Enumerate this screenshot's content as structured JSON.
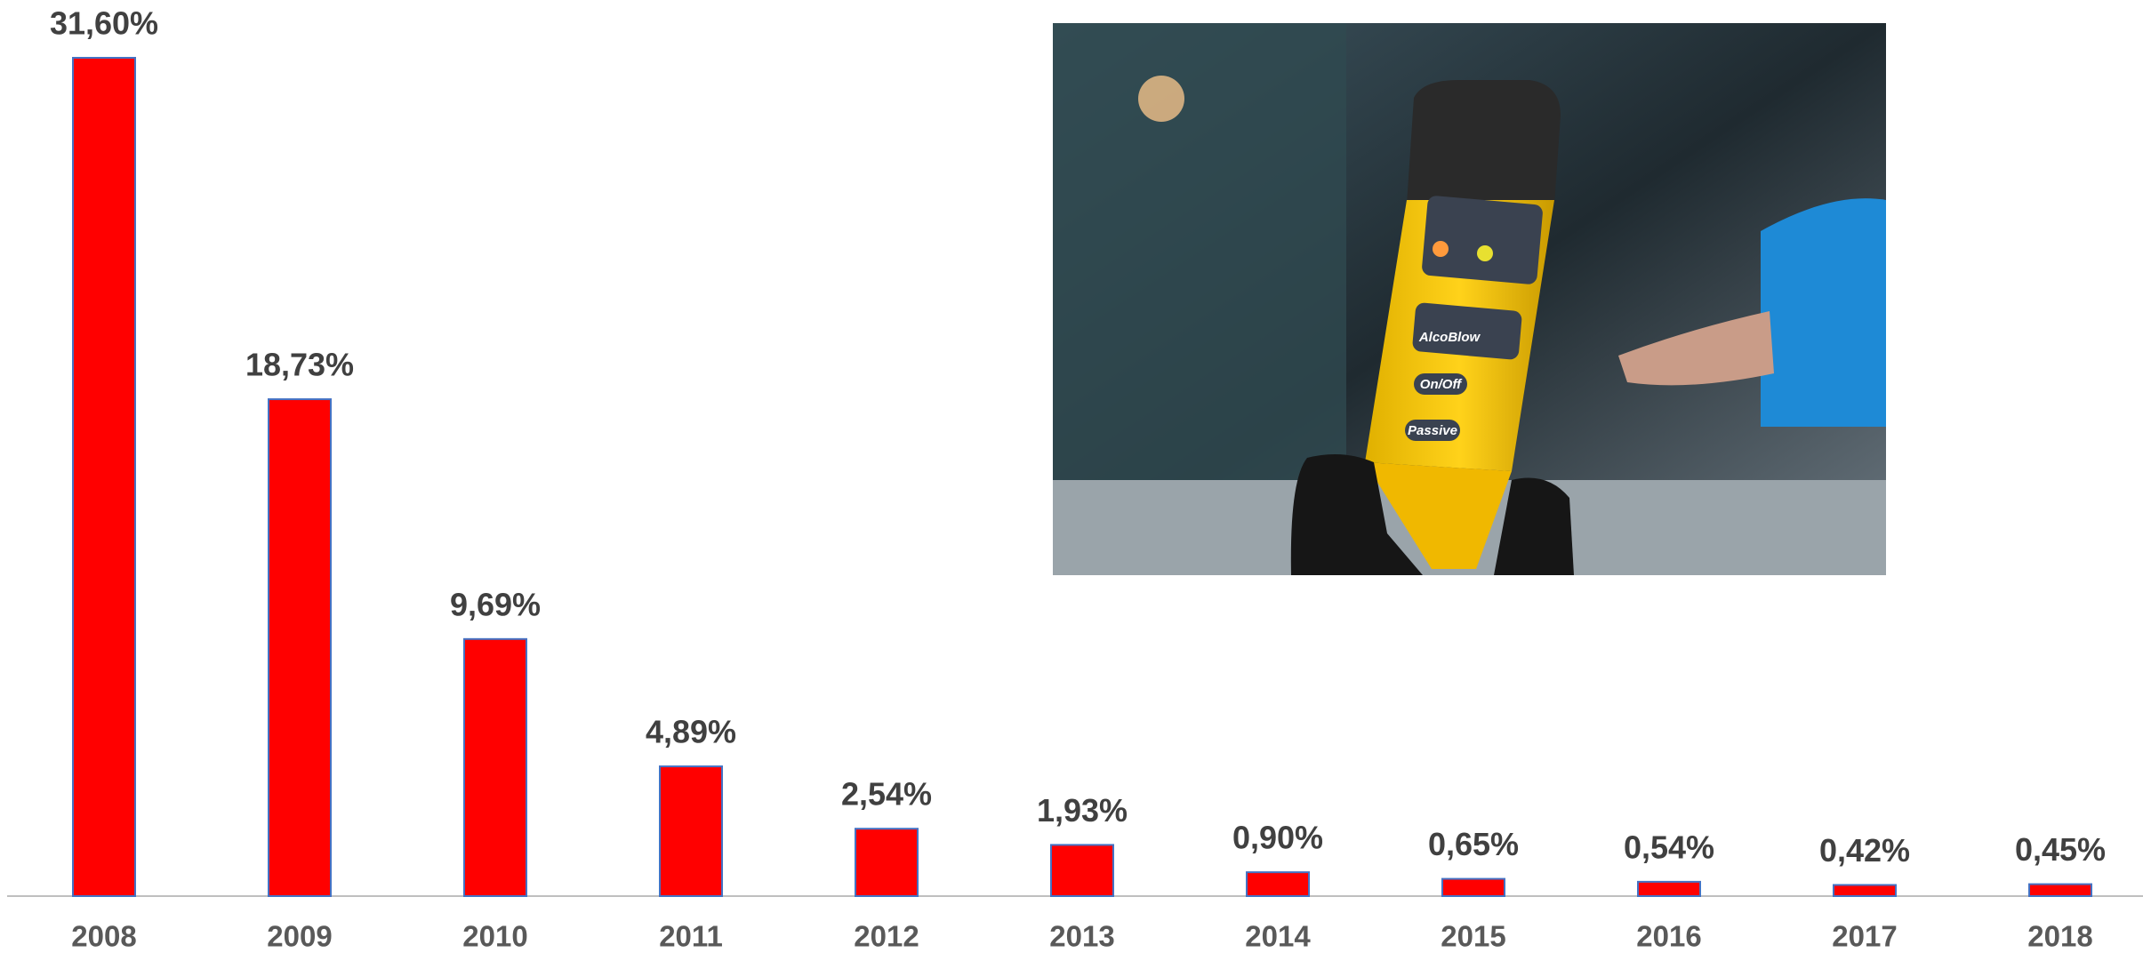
{
  "chart_data": {
    "type": "bar",
    "categories": [
      "2008",
      "2009",
      "2010",
      "2011",
      "2012",
      "2013",
      "2014",
      "2015",
      "2016",
      "2017",
      "2018"
    ],
    "values": [
      31.6,
      18.73,
      9.69,
      4.89,
      2.54,
      1.93,
      0.9,
      0.65,
      0.54,
      0.42,
      0.45
    ],
    "value_labels": [
      "31,60%",
      "18,73%",
      "9,69%",
      "4,89%",
      "2,54%",
      "1,93%",
      "0,90%",
      "0,65%",
      "0,54%",
      "0,42%",
      "0,45%"
    ],
    "color": "#ff0000"
  },
  "photo": {
    "labels": [
      "AlcoBlow",
      "On/Off",
      "Passive"
    ]
  }
}
